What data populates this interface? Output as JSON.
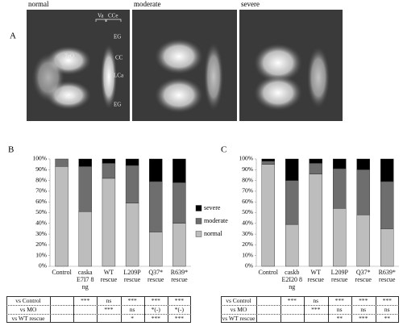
{
  "panel_a": {
    "label": "A",
    "images": [
      {
        "title": "normal",
        "annotations": [
          "Va",
          "CCe",
          "TeO",
          "TeO",
          "EG",
          "CC",
          "LCa",
          "EG"
        ]
      },
      {
        "title": "moderate"
      },
      {
        "title": "severe"
      }
    ]
  },
  "chart_data": [
    {
      "type": "stacked_bar",
      "panel_label": "B",
      "categories": [
        "Control",
        "caska E7I7 8 ng",
        "WT rescue",
        "L209P rescue",
        "Q37* rescue",
        "R639* rescue"
      ],
      "series": [
        {
          "name": "normal",
          "color": "#bdbdbd",
          "values": [
            93,
            51,
            82,
            59,
            32,
            40
          ]
        },
        {
          "name": "moderate",
          "color": "#6e6e6e",
          "values": [
            7,
            42,
            14,
            35,
            47,
            38
          ]
        },
        {
          "name": "severe",
          "color": "#000000",
          "values": [
            0,
            7,
            4,
            6,
            21,
            22
          ]
        }
      ],
      "ylim": [
        0,
        100
      ],
      "yticks": [
        {
          "value": 0,
          "label": "0%"
        },
        {
          "value": 10,
          "label": "10%"
        },
        {
          "value": 20,
          "label": "20%"
        },
        {
          "value": 30,
          "label": "30%"
        },
        {
          "value": 40,
          "label": "40%"
        },
        {
          "value": 50,
          "label": "50%"
        },
        {
          "value": 60,
          "label": "60%"
        },
        {
          "value": 70,
          "label": "70%"
        },
        {
          "value": 80,
          "label": "80%"
        },
        {
          "value": 90,
          "label": "90%"
        },
        {
          "value": 100,
          "label": "100%"
        }
      ],
      "legend": true,
      "table": {
        "rows": [
          {
            "label": "vs Control",
            "cells": [
              null,
              "***",
              "ns",
              "***",
              "***",
              "***"
            ]
          },
          {
            "label": "vs MO",
            "cells": [
              null,
              null,
              "***",
              "ns",
              "*(-)",
              "*(-)"
            ]
          },
          {
            "label": "vs WT rescue",
            "cells": [
              null,
              null,
              null,
              "*",
              "***",
              "***"
            ]
          }
        ]
      }
    },
    {
      "type": "stacked_bar",
      "panel_label": "C",
      "categories": [
        "Control",
        "caskb E2I20 8 ng",
        "WT rescue",
        "L209P rescue",
        "Q37* rescue",
        "R639* rescue"
      ],
      "series": [
        {
          "color": "#bdbdbd",
          "values": [
            95,
            39,
            86,
            54,
            48,
            35
          ]
        },
        {
          "color": "#6e6e6e",
          "values": [
            3,
            41,
            10,
            37,
            42,
            44
          ]
        },
        {
          "color": "#000000",
          "values": [
            2,
            20,
            4,
            9,
            10,
            21
          ]
        }
      ],
      "ylim": [
        0,
        100
      ],
      "yticks": [
        {
          "value": 0,
          "label": "0%"
        },
        {
          "value": 10,
          "label": "10%"
        },
        {
          "value": 20,
          "label": "20%"
        },
        {
          "value": 30,
          "label": "30%"
        },
        {
          "value": 40,
          "label": "40%"
        },
        {
          "value": 50,
          "label": "50%"
        },
        {
          "value": 60,
          "label": "60%"
        },
        {
          "value": 70,
          "label": "70%"
        },
        {
          "value": 80,
          "label": "80%"
        },
        {
          "value": 90,
          "label": "90%"
        },
        {
          "value": 100,
          "label": "100%"
        }
      ],
      "legend": false,
      "table": {
        "rows": [
          {
            "label": "vs Control",
            "cells": [
              null,
              "***",
              "ns",
              "***",
              "***",
              "***"
            ]
          },
          {
            "label": "vs MO",
            "cells": [
              null,
              null,
              "***",
              "ns",
              "ns",
              "ns"
            ]
          },
          {
            "label": "vs WT rescue",
            "cells": [
              null,
              null,
              null,
              "**",
              "***",
              "**"
            ]
          }
        ]
      }
    }
  ]
}
